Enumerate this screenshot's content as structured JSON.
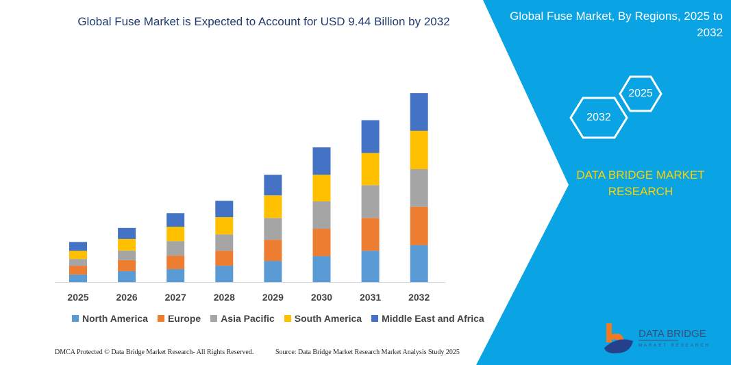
{
  "chart_data": {
    "type": "bar",
    "stacked": true,
    "title": "Global Fuse Market is Expected to Account for USD 9.44 Billion by 2032",
    "categories": [
      "2025",
      "2026",
      "2027",
      "2028",
      "2029",
      "2030",
      "2031",
      "2032"
    ],
    "ylim": [
      0,
      10
    ],
    "grid": false,
    "legend": "bottom",
    "series": [
      {
        "name": "North America",
        "color": "#5b9bd5",
        "values": [
          0.38,
          0.55,
          0.65,
          0.82,
          1.06,
          1.3,
          1.57,
          1.85
        ]
      },
      {
        "name": "Europe",
        "color": "#ed7d31",
        "values": [
          0.44,
          0.55,
          0.68,
          0.75,
          1.06,
          1.37,
          1.64,
          1.92
        ]
      },
      {
        "name": "Asia Pacific",
        "color": "#a5a5a5",
        "values": [
          0.34,
          0.48,
          0.72,
          0.82,
          1.09,
          1.37,
          1.64,
          1.88
        ]
      },
      {
        "name": "South America",
        "color": "#ffc000",
        "values": [
          0.41,
          0.58,
          0.72,
          0.86,
          1.13,
          1.33,
          1.61,
          1.92
        ]
      },
      {
        "name": "Middle East and Africa",
        "color": "#4472c4",
        "values": [
          0.44,
          0.55,
          0.68,
          0.82,
          1.03,
          1.37,
          1.64,
          1.88
        ]
      }
    ]
  },
  "panel": {
    "title": "Global Fuse Market, By Regions, 2025 to 2032",
    "hex_right": "2025",
    "hex_left": "2032",
    "brand": "DATA BRIDGE MARKET RESEARCH",
    "color": "#0aa3e3"
  },
  "logo": {
    "name": "DATA BRIDGE",
    "tagline": "MARKET RESEARCH"
  },
  "footer": {
    "left": "DMCA Protected © Data Bridge Market Research-  All Rights Reserved.",
    "right": "Source: Data Bridge Market Research  Market Analysis Study 2025"
  }
}
